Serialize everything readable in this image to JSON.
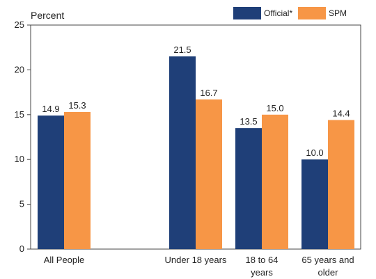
{
  "chart_data": {
    "type": "bar",
    "ylabel": "Percent",
    "ylim": [
      0,
      25
    ],
    "y_ticks": [
      0,
      5,
      10,
      15,
      20,
      25
    ],
    "grid": false,
    "legend_position": "top-right",
    "categories": [
      [
        "All People"
      ],
      [
        "Under 18 years"
      ],
      [
        "18 to 64",
        "years"
      ],
      [
        "65 years and",
        "older"
      ]
    ],
    "series": [
      {
        "name": "Official*",
        "color": "#1f3f78",
        "values": [
          14.9,
          21.5,
          13.5,
          10.0
        ],
        "labels": [
          "14.9",
          "21.5",
          "13.5",
          "10.0"
        ]
      },
      {
        "name": "SPM",
        "color": "#f79646",
        "values": [
          15.3,
          16.7,
          15.0,
          14.4
        ],
        "labels": [
          "15.3",
          "16.7",
          "15.0",
          "14.4"
        ]
      }
    ]
  }
}
